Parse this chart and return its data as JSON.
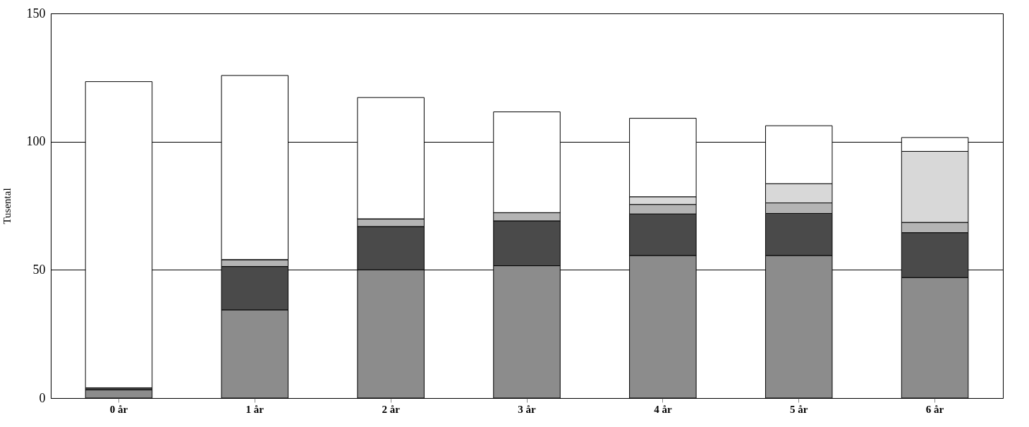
{
  "chart_data": {
    "type": "bar",
    "stacked": true,
    "ylabel": "Tusental",
    "categories": [
      "0 år",
      "1 år",
      "2 år",
      "3 år",
      "4 år",
      "5 år",
      "6 år"
    ],
    "series": [
      {
        "color": "#8c8c8c",
        "values": [
          3.2,
          34.4,
          50.0,
          51.6,
          55.6,
          55.6,
          47.0
        ]
      },
      {
        "color": "#4a4a4a",
        "values": [
          0.8,
          16.9,
          16.9,
          17.5,
          16.2,
          16.4,
          17.5
        ]
      },
      {
        "color": "#b4b4b4",
        "values": [
          null,
          2.7,
          3.0,
          3.2,
          3.7,
          4.1,
          4.0
        ]
      },
      {
        "color": "#d8d8d8",
        "values": [
          0,
          0,
          0,
          0,
          3.0,
          7.5,
          27.7
        ]
      },
      {
        "color": "#ffffff",
        "values": [
          119.4,
          71.8,
          47.3,
          39.3,
          30.6,
          22.6,
          5.4
        ]
      }
    ],
    "ylim": [
      0,
      150
    ],
    "yticks": [
      0,
      50,
      100,
      150
    ],
    "grid": "y"
  }
}
